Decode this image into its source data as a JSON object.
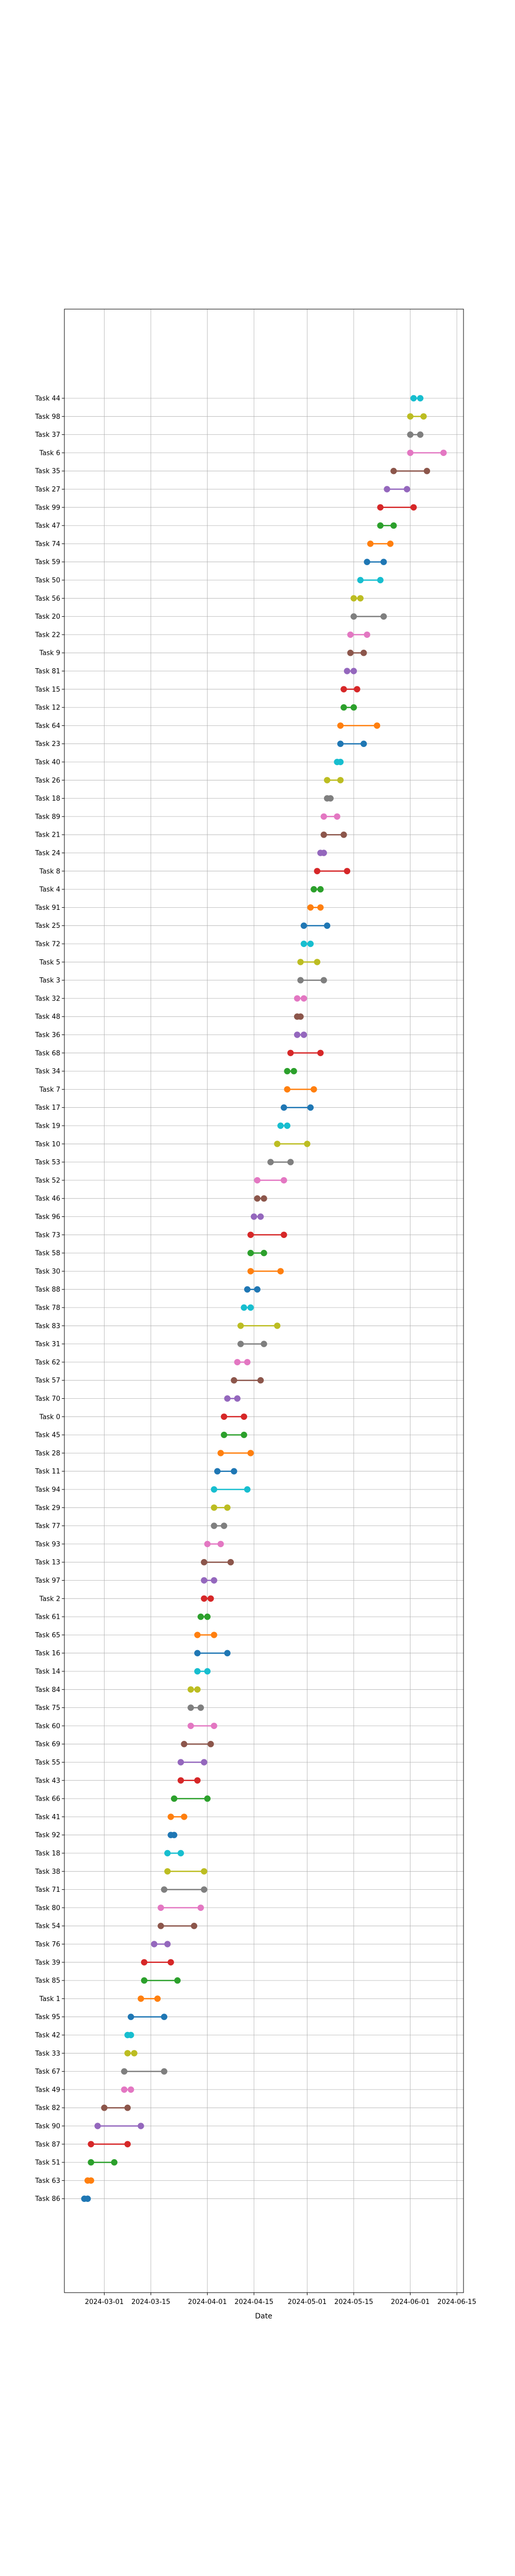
{
  "chart_data": {
    "type": "dumbbell",
    "title": "",
    "xlabel": "Date",
    "ylabel": "",
    "grid": true,
    "xlim": [
      "2024-02-18",
      "2024-06-17"
    ],
    "x_ticks": [
      "2024-03-01",
      "2024-03-15",
      "2024-04-01",
      "2024-04-15",
      "2024-05-01",
      "2024-05-15",
      "2024-06-01",
      "2024-06-15"
    ],
    "colors": [
      "#1f77b4",
      "#ff7f0e",
      "#2ca02c",
      "#d62728",
      "#9467bd",
      "#8c564b",
      "#e377c2",
      "#7f7f7f",
      "#bcbd22",
      "#17becf"
    ],
    "tasks": [
      {
        "name": "Task 86",
        "start": "2024-02-24",
        "end": "2024-02-25"
      },
      {
        "name": "Task 63",
        "start": "2024-02-25",
        "end": "2024-02-26"
      },
      {
        "name": "Task 51",
        "start": "2024-02-26",
        "end": "2024-03-04"
      },
      {
        "name": "Task 87",
        "start": "2024-02-26",
        "end": "2024-03-08"
      },
      {
        "name": "Task 90",
        "start": "2024-02-28",
        "end": "2024-03-12"
      },
      {
        "name": "Task 82",
        "start": "2024-03-01",
        "end": "2024-03-08"
      },
      {
        "name": "Task 49",
        "start": "2024-03-07",
        "end": "2024-03-09"
      },
      {
        "name": "Task 67",
        "start": "2024-03-07",
        "end": "2024-03-19"
      },
      {
        "name": "Task 33",
        "start": "2024-03-08",
        "end": "2024-03-10"
      },
      {
        "name": "Task 42",
        "start": "2024-03-08",
        "end": "2024-03-09"
      },
      {
        "name": "Task 95",
        "start": "2024-03-09",
        "end": "2024-03-19"
      },
      {
        "name": "Task 1",
        "start": "2024-03-12",
        "end": "2024-03-17"
      },
      {
        "name": "Task 85",
        "start": "2024-03-13",
        "end": "2024-03-23"
      },
      {
        "name": "Task 39",
        "start": "2024-03-13",
        "end": "2024-03-21"
      },
      {
        "name": "Task 76",
        "start": "2024-03-16",
        "end": "2024-03-20"
      },
      {
        "name": "Task 54",
        "start": "2024-03-18",
        "end": "2024-03-28"
      },
      {
        "name": "Task 80",
        "start": "2024-03-18",
        "end": "2024-03-30"
      },
      {
        "name": "Task 71",
        "start": "2024-03-19",
        "end": "2024-03-31"
      },
      {
        "name": "Task 38",
        "start": "2024-03-20",
        "end": "2024-03-31"
      },
      {
        "name": "Task 18",
        "start": "2024-03-20",
        "end": "2024-03-24"
      },
      {
        "name": "Task 92",
        "start": "2024-03-21",
        "end": "2024-03-22"
      },
      {
        "name": "Task 41",
        "start": "2024-03-21",
        "end": "2024-03-25"
      },
      {
        "name": "Task 66",
        "start": "2024-03-22",
        "end": "2024-04-01"
      },
      {
        "name": "Task 43",
        "start": "2024-03-24",
        "end": "2024-03-29"
      },
      {
        "name": "Task 55",
        "start": "2024-03-24",
        "end": "2024-03-31"
      },
      {
        "name": "Task 69",
        "start": "2024-03-25",
        "end": "2024-04-02"
      },
      {
        "name": "Task 60",
        "start": "2024-03-27",
        "end": "2024-04-03"
      },
      {
        "name": "Task 75",
        "start": "2024-03-27",
        "end": "2024-03-30"
      },
      {
        "name": "Task 84",
        "start": "2024-03-27",
        "end": "2024-03-29"
      },
      {
        "name": "Task 14",
        "start": "2024-03-29",
        "end": "2024-04-01"
      },
      {
        "name": "Task 16",
        "start": "2024-03-29",
        "end": "2024-04-07"
      },
      {
        "name": "Task 65",
        "start": "2024-03-29",
        "end": "2024-04-03"
      },
      {
        "name": "Task 61",
        "start": "2024-03-30",
        "end": "2024-04-01"
      },
      {
        "name": "Task 2",
        "start": "2024-03-31",
        "end": "2024-04-02"
      },
      {
        "name": "Task 97",
        "start": "2024-03-31",
        "end": "2024-04-03"
      },
      {
        "name": "Task 13",
        "start": "2024-03-31",
        "end": "2024-04-08"
      },
      {
        "name": "Task 93",
        "start": "2024-04-01",
        "end": "2024-04-05"
      },
      {
        "name": "Task 77",
        "start": "2024-04-03",
        "end": "2024-04-06"
      },
      {
        "name": "Task 29",
        "start": "2024-04-03",
        "end": "2024-04-07"
      },
      {
        "name": "Task 94",
        "start": "2024-04-03",
        "end": "2024-04-13"
      },
      {
        "name": "Task 11",
        "start": "2024-04-04",
        "end": "2024-04-09"
      },
      {
        "name": "Task 28",
        "start": "2024-04-05",
        "end": "2024-04-14"
      },
      {
        "name": "Task 45",
        "start": "2024-04-06",
        "end": "2024-04-12"
      },
      {
        "name": "Task 0",
        "start": "2024-04-06",
        "end": "2024-04-12"
      },
      {
        "name": "Task 70",
        "start": "2024-04-07",
        "end": "2024-04-10"
      },
      {
        "name": "Task 57",
        "start": "2024-04-09",
        "end": "2024-04-17"
      },
      {
        "name": "Task 62",
        "start": "2024-04-10",
        "end": "2024-04-13"
      },
      {
        "name": "Task 31",
        "start": "2024-04-11",
        "end": "2024-04-18"
      },
      {
        "name": "Task 83",
        "start": "2024-04-11",
        "end": "2024-04-22"
      },
      {
        "name": "Task 78",
        "start": "2024-04-12",
        "end": "2024-04-14"
      },
      {
        "name": "Task 88",
        "start": "2024-04-13",
        "end": "2024-04-16"
      },
      {
        "name": "Task 30",
        "start": "2024-04-14",
        "end": "2024-04-23"
      },
      {
        "name": "Task 58",
        "start": "2024-04-14",
        "end": "2024-04-18"
      },
      {
        "name": "Task 73",
        "start": "2024-04-14",
        "end": "2024-04-24"
      },
      {
        "name": "Task 96",
        "start": "2024-04-15",
        "end": "2024-04-17"
      },
      {
        "name": "Task 46",
        "start": "2024-04-16",
        "end": "2024-04-18"
      },
      {
        "name": "Task 52",
        "start": "2024-04-16",
        "end": "2024-04-24"
      },
      {
        "name": "Task 53",
        "start": "2024-04-20",
        "end": "2024-04-26"
      },
      {
        "name": "Task 10",
        "start": "2024-04-22",
        "end": "2024-05-01"
      },
      {
        "name": "Task 19",
        "start": "2024-04-23",
        "end": "2024-04-25"
      },
      {
        "name": "Task 17",
        "start": "2024-04-24",
        "end": "2024-05-02"
      },
      {
        "name": "Task 7",
        "start": "2024-04-25",
        "end": "2024-05-03"
      },
      {
        "name": "Task 34",
        "start": "2024-04-25",
        "end": "2024-04-27"
      },
      {
        "name": "Task 68",
        "start": "2024-04-26",
        "end": "2024-05-05"
      },
      {
        "name": "Task 36",
        "start": "2024-04-28",
        "end": "2024-04-30"
      },
      {
        "name": "Task 48",
        "start": "2024-04-28",
        "end": "2024-04-29"
      },
      {
        "name": "Task 32",
        "start": "2024-04-28",
        "end": "2024-04-30"
      },
      {
        "name": "Task 3",
        "start": "2024-04-29",
        "end": "2024-05-06"
      },
      {
        "name": "Task 5",
        "start": "2024-04-29",
        "end": "2024-05-04"
      },
      {
        "name": "Task 72",
        "start": "2024-04-30",
        "end": "2024-05-02"
      },
      {
        "name": "Task 25",
        "start": "2024-04-30",
        "end": "2024-05-07"
      },
      {
        "name": "Task 91",
        "start": "2024-05-02",
        "end": "2024-05-05"
      },
      {
        "name": "Task 4",
        "start": "2024-05-03",
        "end": "2024-05-05"
      },
      {
        "name": "Task 8",
        "start": "2024-05-04",
        "end": "2024-05-13"
      },
      {
        "name": "Task 24",
        "start": "2024-05-05",
        "end": "2024-05-06"
      },
      {
        "name": "Task 21",
        "start": "2024-05-06",
        "end": "2024-05-12"
      },
      {
        "name": "Task 89",
        "start": "2024-05-06",
        "end": "2024-05-10"
      },
      {
        "name": "Task 18",
        "start": "2024-05-07",
        "end": "2024-05-08"
      },
      {
        "name": "Task 26",
        "start": "2024-05-07",
        "end": "2024-05-11"
      },
      {
        "name": "Task 40",
        "start": "2024-05-10",
        "end": "2024-05-11"
      },
      {
        "name": "Task 23",
        "start": "2024-05-11",
        "end": "2024-05-18"
      },
      {
        "name": "Task 64",
        "start": "2024-05-11",
        "end": "2024-05-22"
      },
      {
        "name": "Task 12",
        "start": "2024-05-12",
        "end": "2024-05-15"
      },
      {
        "name": "Task 15",
        "start": "2024-05-12",
        "end": "2024-05-16"
      },
      {
        "name": "Task 81",
        "start": "2024-05-13",
        "end": "2024-05-15"
      },
      {
        "name": "Task 9",
        "start": "2024-05-14",
        "end": "2024-05-18"
      },
      {
        "name": "Task 22",
        "start": "2024-05-14",
        "end": "2024-05-19"
      },
      {
        "name": "Task 20",
        "start": "2024-05-15",
        "end": "2024-05-24"
      },
      {
        "name": "Task 56",
        "start": "2024-05-15",
        "end": "2024-05-17"
      },
      {
        "name": "Task 50",
        "start": "2024-05-17",
        "end": "2024-05-23"
      },
      {
        "name": "Task 59",
        "start": "2024-05-19",
        "end": "2024-05-24"
      },
      {
        "name": "Task 74",
        "start": "2024-05-20",
        "end": "2024-05-26"
      },
      {
        "name": "Task 47",
        "start": "2024-05-23",
        "end": "2024-05-27"
      },
      {
        "name": "Task 99",
        "start": "2024-05-23",
        "end": "2024-06-02"
      },
      {
        "name": "Task 27",
        "start": "2024-05-25",
        "end": "2024-05-31"
      },
      {
        "name": "Task 35",
        "start": "2024-05-27",
        "end": "2024-06-06"
      },
      {
        "name": "Task 6",
        "start": "2024-06-01",
        "end": "2024-06-11"
      },
      {
        "name": "Task 37",
        "start": "2024-06-01",
        "end": "2024-06-04"
      },
      {
        "name": "Task 98",
        "start": "2024-06-01",
        "end": "2024-06-05"
      },
      {
        "name": "Task 44",
        "start": "2024-06-02",
        "end": "2024-06-04"
      }
    ]
  }
}
